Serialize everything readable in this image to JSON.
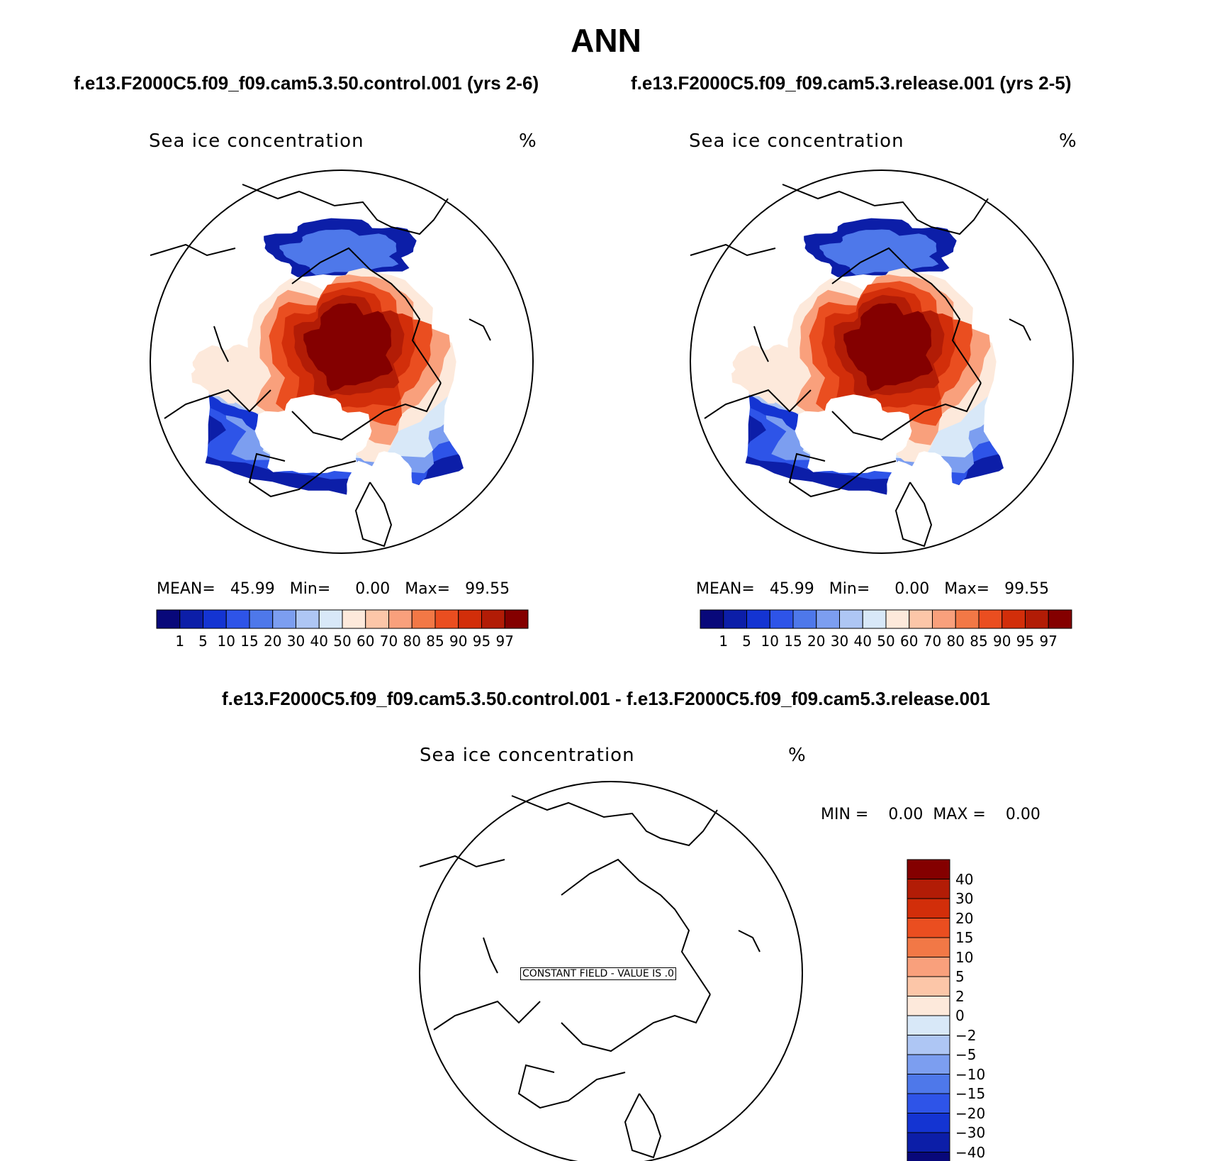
{
  "figure": {
    "title": "ANN",
    "panel_variable": "Sea ice concentration",
    "panel_units": "%"
  },
  "colors": {
    "bins": [
      "#08087a",
      "#0c1ea8",
      "#1434d2",
      "#2e54e8",
      "#4e78ea",
      "#7c9ef0",
      "#aec6f4",
      "#d8e8f8",
      "#fde9db",
      "#fcc6a8",
      "#f9a07c",
      "#f27846",
      "#ea4e20",
      "#d22e0a",
      "#b21c06",
      "#840000"
    ],
    "land_outline": "#000000"
  },
  "chart_data": [
    {
      "type": "heatmap",
      "projection": "north polar stereographic",
      "case": "f.e13.F2000C5.f09_f09.cam5.3.50.control.001 (yrs 2-6)",
      "title": "Sea ice concentration",
      "units": "%",
      "stats": {
        "mean_label": "MEAN=",
        "mean": "45.99",
        "min_label": "Min=",
        "min": "0.00",
        "max_label": "Max=",
        "max": "99.55"
      },
      "colorbar_levels": [
        "1",
        "5",
        "10",
        "15",
        "20",
        "30",
        "40",
        "50",
        "60",
        "70",
        "80",
        "85",
        "90",
        "95",
        "97"
      ]
    },
    {
      "type": "heatmap",
      "projection": "north polar stereographic",
      "case": "f.e13.F2000C5.f09_f09.cam5.3.release.001 (yrs 2-5)",
      "title": "Sea ice concentration",
      "units": "%",
      "stats": {
        "mean_label": "MEAN=",
        "mean": "45.99",
        "min_label": "Min=",
        "min": "0.00",
        "max_label": "Max=",
        "max": "99.55"
      },
      "colorbar_levels": [
        "1",
        "5",
        "10",
        "15",
        "20",
        "30",
        "40",
        "50",
        "60",
        "70",
        "80",
        "85",
        "90",
        "95",
        "97"
      ]
    },
    {
      "type": "heatmap",
      "projection": "north polar stereographic",
      "case": "f.e13.F2000C5.f09_f09.cam5.3.50.control.001 - f.e13.F2000C5.f09_f09.cam5.3.release.001",
      "title": "Sea ice concentration",
      "units": "%",
      "stats": {
        "min_label": "MIN =",
        "min": "0.00",
        "max_label": "MAX =",
        "max": "0.00"
      },
      "annotation": "CONSTANT FIELD - VALUE IS .0",
      "colorbar_levels": [
        "40",
        "30",
        "20",
        "15",
        "10",
        "5",
        "2",
        "0",
        "−2",
        "−5",
        "−10",
        "−15",
        "−20",
        "−30",
        "−40"
      ]
    }
  ]
}
